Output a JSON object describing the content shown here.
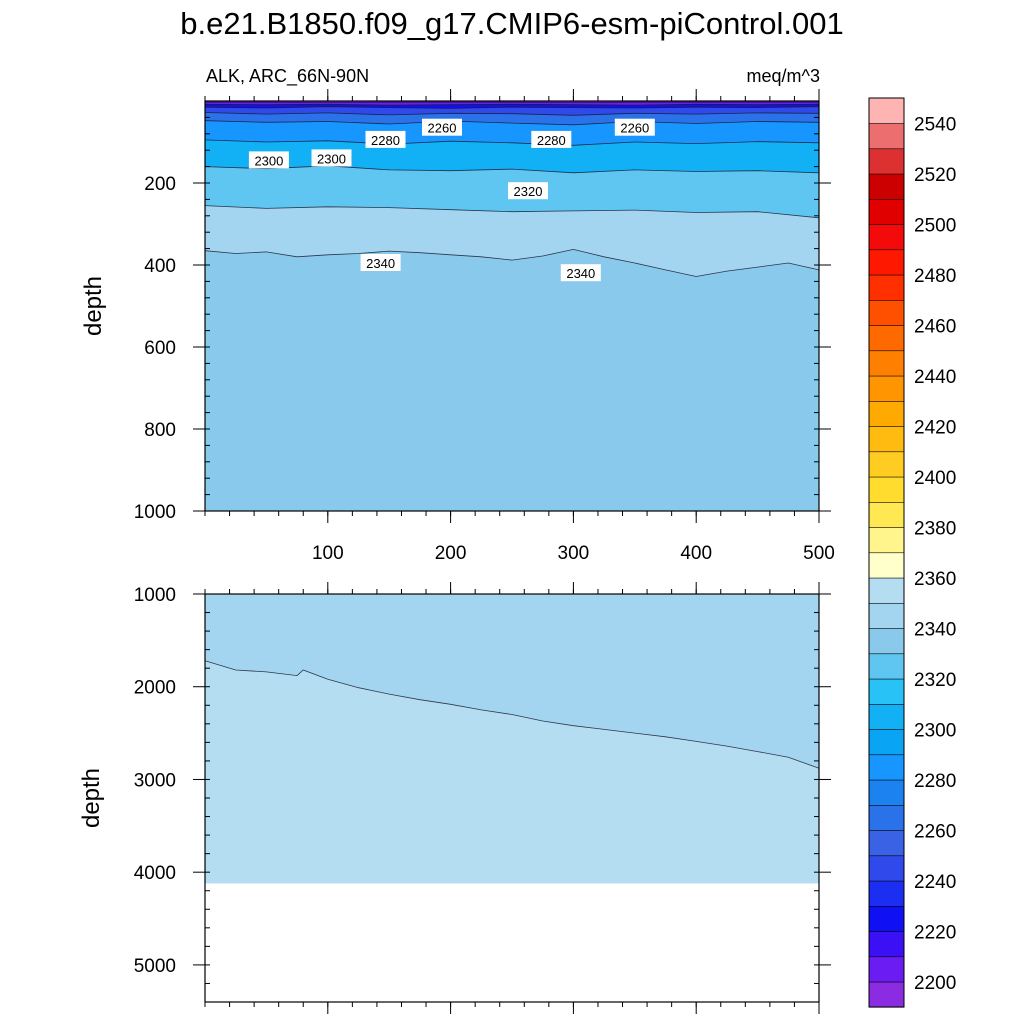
{
  "chart_data": {
    "type": "contour",
    "title": "b.e21.B1850.f09_g17.CMIP6-esm-piControl.001",
    "left_subtitle": "ALK, ARC_66N-90N",
    "right_subtitle": "meq/m^3",
    "ylabel": "depth",
    "x_range": [
      0,
      500
    ],
    "x_ticks": [
      100,
      200,
      300,
      400,
      500
    ],
    "panels": [
      {
        "name": "upper",
        "y_range": [
          0,
          1000
        ],
        "y_ticks": [
          200,
          400,
          600,
          800,
          1000
        ],
        "show_x_tick_labels": true,
        "depth_isolines": [
          {
            "level": 2200,
            "x": [
              0,
              50,
              100,
              150,
              200,
              250,
              300,
              350,
              400,
              450,
              500
            ],
            "y": [
              3,
              3,
              4,
              3,
              3,
              3,
              4,
              3,
              3,
              3,
              3
            ]
          },
          {
            "level": 2220,
            "x": [
              0,
              50,
              100,
              150,
              200,
              250,
              300,
              350,
              400,
              450,
              500
            ],
            "y": [
              8,
              9,
              8,
              10,
              9,
              8,
              9,
              10,
              8,
              9,
              8
            ]
          },
          {
            "level": 2240,
            "x": [
              0,
              50,
              100,
              150,
              200,
              250,
              300,
              350,
              400,
              450,
              500
            ],
            "y": [
              15,
              17,
              14,
              16,
              18,
              15,
              16,
              17,
              15,
              16,
              14
            ]
          },
          {
            "level": 2260,
            "x": [
              0,
              50,
              100,
              150,
              200,
              250,
              300,
              350,
              400,
              450,
              500
            ],
            "y": [
              28,
              32,
              29,
              34,
              30,
              31,
              35,
              30,
              32,
              29,
              30
            ]
          },
          {
            "level": 2280,
            "x": [
              0,
              50,
              100,
              150,
              200,
              250,
              300,
              350,
              400,
              450,
              500
            ],
            "y": [
              48,
              52,
              50,
              56,
              49,
              54,
              58,
              50,
              55,
              50,
              52
            ]
          },
          {
            "level": 2300,
            "x": [
              0,
              50,
              100,
              150,
              200,
              250,
              300,
              350,
              400,
              450,
              500
            ],
            "y": [
              95,
              100,
              97,
              105,
              98,
              102,
              108,
              100,
              104,
              99,
              102
            ]
          },
          {
            "level": 2320,
            "x": [
              0,
              50,
              100,
              150,
              200,
              250,
              300,
              350,
              400,
              450,
              500
            ],
            "y": [
              160,
              165,
              158,
              168,
              170,
              166,
              175,
              168,
              172,
              170,
              175
            ]
          },
          {
            "level": 2340,
            "x": [
              0,
              50,
              100,
              150,
              200,
              250,
              300,
              350,
              400,
              450,
              500
            ],
            "y": [
              255,
              262,
              258,
              260,
              265,
              270,
              268,
              266,
              272,
              270,
              285
            ]
          },
          {
            "level": 2360,
            "x": [
              0,
              25,
              50,
              75,
              100,
              125,
              150,
              175,
              200,
              225,
              250,
              275,
              300,
              325,
              350,
              375,
              400,
              425,
              450,
              475,
              500
            ],
            "y": [
              365,
              372,
              368,
              380,
              375,
              372,
              366,
              370,
              375,
              380,
              388,
              378,
              362,
              380,
              395,
              412,
              428,
              415,
              405,
              395,
              412
            ]
          }
        ],
        "line_labels": [
          {
            "text": "2300",
            "x": 52,
            "y": 145
          },
          {
            "text": "2300",
            "x": 103,
            "y": 140
          },
          {
            "text": "2280",
            "x": 147,
            "y": 95
          },
          {
            "text": "2260",
            "x": 193,
            "y": 65
          },
          {
            "text": "2280",
            "x": 282,
            "y": 95
          },
          {
            "text": "2260",
            "x": 350,
            "y": 65
          },
          {
            "text": "2320",
            "x": 263,
            "y": 220
          },
          {
            "text": "2340",
            "x": 143,
            "y": 395
          },
          {
            "text": "2340",
            "x": 306,
            "y": 420
          }
        ]
      },
      {
        "name": "lower",
        "y_range": [
          1000,
          5400
        ],
        "y_ticks": [
          1000,
          2000,
          3000,
          4000,
          5000
        ],
        "show_x_tick_labels": false,
        "isoline_2360": {
          "x": [
            0,
            25,
            50,
            75,
            80,
            100,
            125,
            150,
            175,
            200,
            225,
            250,
            275,
            300,
            325,
            350,
            375,
            400,
            425,
            450,
            475,
            500
          ],
          "y": [
            1720,
            1820,
            1840,
            1880,
            1820,
            1920,
            2010,
            2080,
            2140,
            2190,
            2250,
            2300,
            2370,
            2420,
            2460,
            2500,
            2540,
            2590,
            2640,
            2700,
            2760,
            2880
          ]
        },
        "bottom_of_data": 4120
      }
    ],
    "colorbar": {
      "levels": [
        2200,
        2210,
        2220,
        2230,
        2240,
        2250,
        2260,
        2270,
        2280,
        2290,
        2300,
        2310,
        2320,
        2330,
        2340,
        2350,
        2360,
        2370,
        2380,
        2390,
        2400,
        2410,
        2420,
        2430,
        2440,
        2450,
        2460,
        2470,
        2480,
        2490,
        2500,
        2510,
        2520,
        2530,
        2540,
        2550
      ],
      "labels": [
        2200,
        2220,
        2240,
        2260,
        2280,
        2300,
        2320,
        2340,
        2360,
        2380,
        2400,
        2420,
        2440,
        2460,
        2480,
        2500,
        2520,
        2540
      ],
      "colors": [
        "#8b2be2",
        "#6b1cf2",
        "#3c10f5",
        "#1010f5",
        "#1c2ef2",
        "#3049ea",
        "#3a62e4",
        "#2a72ea",
        "#1b82f0",
        "#1796ff",
        "#0aa4f5",
        "#12b1f5",
        "#28c2f7",
        "#5ec6f0",
        "#89caec",
        "#a3d5f0",
        "#b5ddf2",
        "#ffffcc",
        "#fff58c",
        "#ffe852",
        "#ffdc2e",
        "#ffcc22",
        "#ffbb10",
        "#ffaa00",
        "#ff9500",
        "#ff8000",
        "#ff6a00",
        "#ff5000",
        "#ff3000",
        "#ff1800",
        "#f40a0a",
        "#e00000",
        "#cc0000",
        "#dd3030",
        "#ec6e6e",
        "#ffb4b4"
      ]
    }
  }
}
